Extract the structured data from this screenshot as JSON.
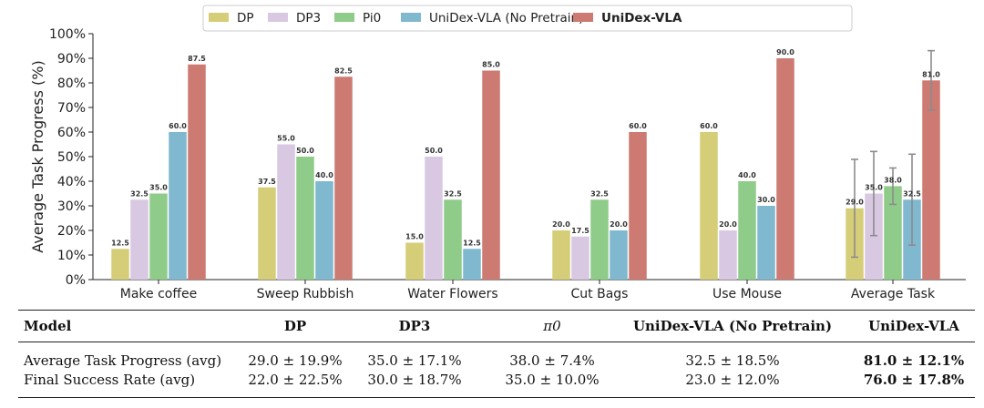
{
  "chart_data": {
    "type": "bar",
    "ylabel": "Average Task Progress (%)",
    "ylim": [
      0,
      100
    ],
    "yticks": [
      "0%",
      "10%",
      "20%",
      "30%",
      "40%",
      "50%",
      "60%",
      "70%",
      "80%",
      "90%",
      "100%"
    ],
    "categories": [
      "Make coffee",
      "Sweep Rubbish",
      "Water Flowers",
      "Cut Bags",
      "Use Mouse",
      "Average Task"
    ],
    "legend_position": "top-center",
    "series": [
      {
        "name": "DP",
        "color": "#d6cd78",
        "values": [
          12.5,
          37.5,
          15.0,
          20.0,
          60.0,
          29.0
        ],
        "labels": [
          "12.5",
          "37.5",
          "15.0",
          "20.0",
          "60.0",
          "29.0"
        ],
        "avg_error": 19.9
      },
      {
        "name": "DP3",
        "color": "#d8c8e2",
        "values": [
          32.5,
          55.0,
          50.0,
          17.5,
          20.0,
          35.0
        ],
        "labels": [
          "32.5",
          "55.0",
          "50.0",
          "17.5",
          "20.0",
          "35.0"
        ],
        "avg_error": 17.1
      },
      {
        "name": "Pi0",
        "color": "#8fcc8a",
        "values": [
          35.0,
          50.0,
          32.5,
          32.5,
          40.0,
          38.0
        ],
        "labels": [
          "35.0",
          "50.0",
          "32.5",
          "32.5",
          "40.0",
          "38.0"
        ],
        "avg_error": 7.4
      },
      {
        "name": "UniDex-VLA (No Pretrain)",
        "color": "#7fb8cf",
        "values": [
          60.0,
          40.0,
          12.5,
          20.0,
          30.0,
          32.5
        ],
        "labels": [
          "60.0",
          "40.0",
          "12.5",
          "20.0",
          "30.0",
          "32.5"
        ],
        "avg_error": 18.5
      },
      {
        "name": "UniDex-VLA",
        "color": "#cc7a72",
        "values": [
          87.5,
          82.5,
          85.0,
          60.0,
          90.0,
          81.0
        ],
        "labels": [
          "87.5",
          "82.5",
          "85.0",
          "60.0",
          "90.0",
          "81.0"
        ],
        "avg_error": 12.1,
        "bold_legend": true
      }
    ]
  },
  "table": {
    "headers": [
      "Model",
      "DP",
      "DP3",
      "π0",
      "UniDex-VLA (No Pretrain)",
      "UniDex-VLA"
    ],
    "rows": [
      {
        "label": "Average Task Progress (avg)",
        "cells": [
          "29.0 ± 19.9%",
          "35.0 ± 17.1%",
          "38.0 ± 7.4%",
          "32.5 ± 18.5%",
          "81.0 ± 12.1%"
        ]
      },
      {
        "label": "Final Success Rate (avg)",
        "cells": [
          "22.0 ± 22.5%",
          "30.0 ± 18.7%",
          "35.0 ± 10.0%",
          "23.0 ± 12.0%",
          "76.0 ± 17.8%"
        ]
      }
    ]
  }
}
